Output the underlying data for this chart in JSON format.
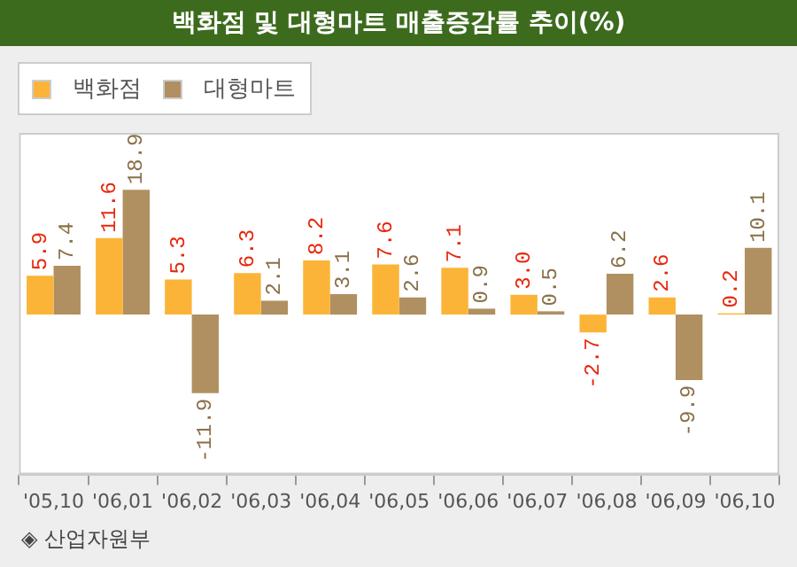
{
  "chart_data": {
    "type": "bar",
    "title": "백화점 및 대형마트 매출증감률 추이(%)",
    "categories": [
      "'05,10",
      "'06,01",
      "'06,02",
      "'06,03",
      "'06,04",
      "'06,05",
      "'06,06",
      "'06,07",
      "'06,08",
      "'06,09",
      "'06,10"
    ],
    "series": [
      {
        "name": "백화점",
        "color": "#fbb437",
        "values": [
          5.9,
          11.6,
          5.3,
          6.3,
          8.2,
          7.6,
          7.1,
          3.0,
          -2.7,
          2.6,
          0.2
        ],
        "value_labels": [
          "5.9",
          "11.6",
          "5.3",
          "6.3",
          "8.2",
          "7.6",
          "7.1",
          "3.0",
          "-2.7",
          "2.6",
          "0.2"
        ]
      },
      {
        "name": "대형마트",
        "color": "#b09060",
        "values": [
          7.4,
          18.9,
          -11.9,
          2.1,
          3.1,
          2.6,
          0.9,
          0.5,
          6.2,
          -9.9,
          10.1
        ],
        "value_labels": [
          "7.4",
          "18.9",
          "-11.9",
          "2.1",
          "3.1",
          "2.6",
          "0.9",
          "0.5",
          "6.2",
          "-9.9",
          "10.1"
        ]
      }
    ],
    "legend": "top left",
    "grid": false,
    "annotations": [
      "◈ 산업자원부"
    ]
  }
}
